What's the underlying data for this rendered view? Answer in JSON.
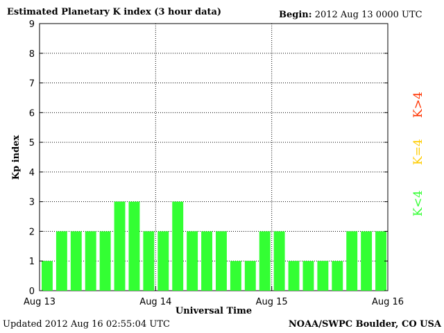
{
  "title": "Estimated Planetary K index (3 hour data)",
  "begin_label": "Begin:",
  "begin_value": "2012 Aug 13 0000 UTC",
  "updated_label": "Updated",
  "updated_value": "2012 Aug 16 02:55:04 UTC",
  "credit": "NOAA/SWPC Boulder, CO USA",
  "legend": [
    {
      "label": "K<4",
      "color": "#33ff33"
    },
    {
      "label": "K=4",
      "color": "#ffcc00"
    },
    {
      "label": "K>4",
      "color": "#ff3300"
    }
  ],
  "chart_data": {
    "type": "bar",
    "title": "Estimated Planetary K index (3 hour data)",
    "xlabel": "Universal Time",
    "ylabel": "Kp index",
    "ylim": [
      0,
      9
    ],
    "yticks": [
      0,
      1,
      2,
      3,
      4,
      5,
      6,
      7,
      8,
      9
    ],
    "xtick_labels": [
      "Aug 13",
      "Aug 14",
      "Aug 15",
      "Aug 16"
    ],
    "grid": true,
    "bar_color": "#33ff33",
    "values": [
      1,
      2,
      2,
      2,
      2,
      3,
      3,
      2,
      2,
      3,
      2,
      2,
      2,
      1,
      1,
      2,
      2,
      1,
      1,
      1,
      1,
      2,
      2,
      2
    ]
  }
}
